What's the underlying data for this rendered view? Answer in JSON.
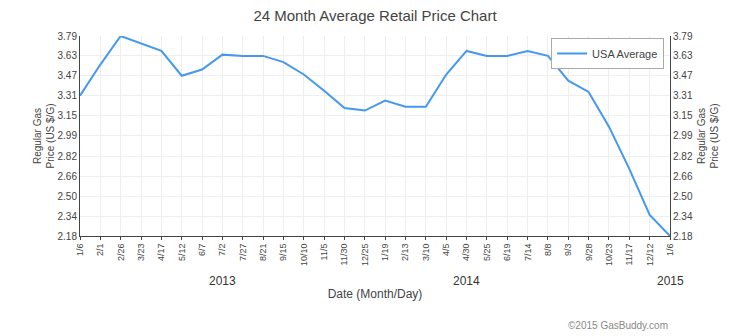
{
  "chart_data": {
    "type": "line",
    "title": "24 Month Average Retail Price Chart",
    "xlabel": "Date (Month/Day)",
    "ylabel": "Regular Gas\nPrice (US $/G)",
    "y2label": "Regular Gas\nPrice (US $/G)",
    "categories": [
      "1/6",
      "2/1",
      "2/26",
      "3/23",
      "4/17",
      "5/12",
      "6/7",
      "7/2",
      "7/27",
      "8/21",
      "9/15",
      "10/10",
      "11/5",
      "11/30",
      "12/25",
      "1/19",
      "2/13",
      "3/10",
      "4/5",
      "4/30",
      "5/25",
      "6/19",
      "7/14",
      "8/8",
      "9/3",
      "9/28",
      "10/23",
      "11/17",
      "12/12",
      "1/6"
    ],
    "series": [
      {
        "name": "USA Average",
        "color": "#4499ee",
        "values": [
          3.31,
          3.56,
          3.79,
          3.73,
          3.67,
          3.47,
          3.52,
          3.64,
          3.63,
          3.63,
          3.58,
          3.48,
          3.35,
          3.21,
          3.19,
          3.27,
          3.22,
          3.22,
          3.48,
          3.67,
          3.63,
          3.63,
          3.67,
          3.63,
          3.43,
          3.34,
          3.06,
          2.72,
          2.35,
          2.18
        ]
      }
    ],
    "ylim": [
      2.18,
      3.79
    ],
    "yticks": [
      2.18,
      2.34,
      {
        "value": 2.5,
        "label": "2.50"
      },
      2.66,
      2.82,
      2.99,
      3.15,
      3.31,
      3.47,
      3.63,
      3.79
    ],
    "y2lim": [
      2.18,
      3.79
    ],
    "y2ticks": [
      2.18,
      2.34,
      {
        "value": 2.5,
        "label": "2.50"
      },
      2.66,
      2.82,
      2.99,
      3.15,
      3.31,
      3.47,
      3.63,
      3.79
    ],
    "annotations": [
      {
        "text": "2013",
        "x": 7
      },
      {
        "text": "2014",
        "x": 19
      },
      {
        "text": "2015",
        "x": 29
      },
      {
        "text": "©2015 GasBuddy.com"
      }
    ],
    "grid": true,
    "legend": "upper right"
  }
}
